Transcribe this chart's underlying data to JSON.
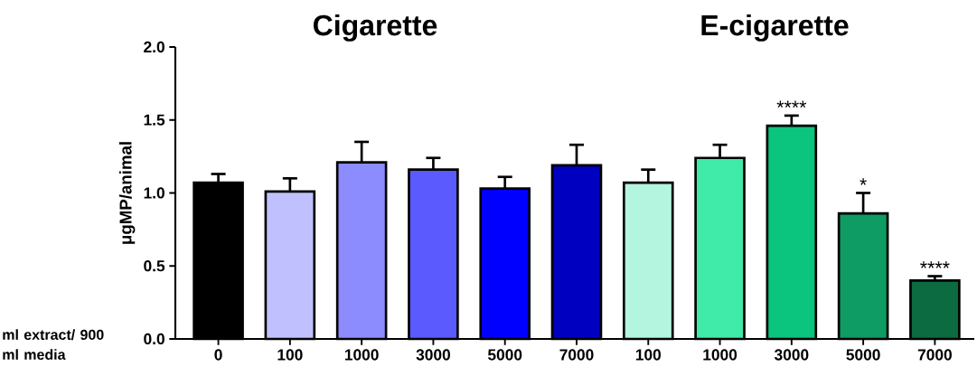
{
  "chart_data": {
    "type": "bar",
    "categories": [
      "0",
      "100",
      "1000",
      "3000",
      "5000",
      "7000",
      "100",
      "1000",
      "3000",
      "5000",
      "7000"
    ],
    "values": [
      1.07,
      1.01,
      1.21,
      1.16,
      1.03,
      1.19,
      1.07,
      1.24,
      1.46,
      0.86,
      0.4
    ],
    "errors": [
      0.06,
      0.09,
      0.14,
      0.08,
      0.08,
      0.14,
      0.09,
      0.09,
      0.07,
      0.14,
      0.03
    ],
    "colors": [
      "#000000",
      "#c0c0ff",
      "#8c8cff",
      "#5a5aff",
      "#0000ff",
      "#0000c0",
      "#b3f5de",
      "#40eaa8",
      "#0bc47e",
      "#0f9c64",
      "#0c6b40"
    ],
    "value_labels": [
      null,
      null,
      null,
      null,
      null,
      null,
      null,
      null,
      "****",
      "*",
      "****"
    ],
    "annotations": [
      "Cigarette",
      "E-cigarette"
    ],
    "xlabel": "ml extract/ 900 ml media",
    "ylabel": "μgMP/animal",
    "ylim": [
      0,
      2.0
    ],
    "yticks": [
      {
        "value": 0,
        "label": "0.0"
      },
      {
        "value": 0.5,
        "label": "0.5"
      },
      {
        "value": 1.0,
        "label": "1.0"
      },
      {
        "value": 1.5,
        "label": "1.5"
      },
      {
        "value": 2.0,
        "label": "2.0"
      }
    ],
    "grid": false
  }
}
